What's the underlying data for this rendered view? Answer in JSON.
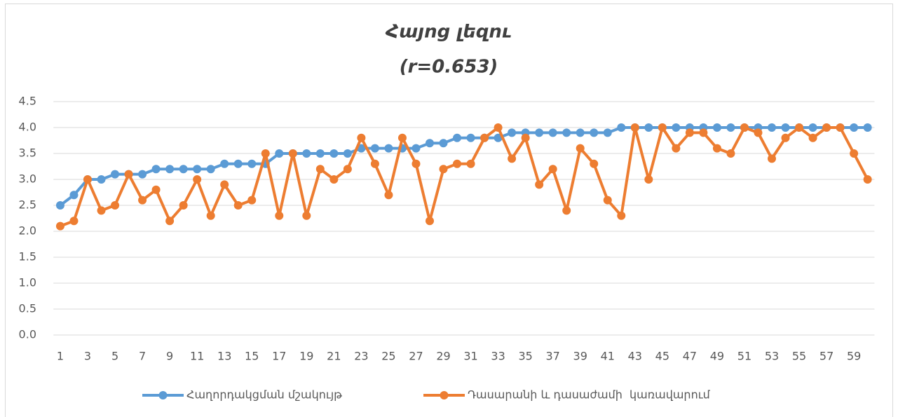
{
  "chart_data": {
    "type": "line",
    "title": "Հայոց լեզու",
    "subtitle": "(r=0.653)",
    "categories": [
      1,
      null,
      3,
      null,
      5,
      null,
      7,
      null,
      9,
      null,
      11,
      null,
      13,
      null,
      15,
      null,
      17,
      null,
      19,
      null,
      21,
      null,
      23,
      null,
      25,
      null,
      27,
      null,
      29,
      null,
      31,
      null,
      33,
      null,
      35,
      null,
      37,
      null,
      39,
      null,
      41,
      null,
      43,
      null,
      45,
      null,
      47,
      null,
      49,
      null,
      51,
      null,
      53,
      null,
      55,
      null,
      57,
      null,
      59,
      null
    ],
    "series": [
      {
        "name": "Հաղորդակցման մշակույթ",
        "color": "#5b9bd5",
        "values": [
          2.5,
          2.7,
          3.0,
          3.0,
          3.1,
          3.1,
          3.1,
          3.2,
          3.2,
          3.2,
          3.2,
          3.2,
          3.3,
          3.3,
          3.3,
          3.3,
          3.5,
          3.5,
          3.5,
          3.5,
          3.5,
          3.5,
          3.6,
          3.6,
          3.6,
          3.6,
          3.6,
          3.7,
          3.7,
          3.8,
          3.8,
          3.8,
          3.8,
          3.9,
          3.9,
          3.9,
          3.9,
          3.9,
          3.9,
          3.9,
          3.9,
          4.0,
          4.0,
          4.0,
          4.0,
          4.0,
          4.0,
          4.0,
          4.0,
          4.0,
          4.0,
          4.0,
          4.0,
          4.0,
          4.0,
          4.0,
          4.0,
          4.0,
          4.0,
          4.0
        ]
      },
      {
        "name": "Դասարանի և դասաժամի  կառավարում",
        "color": "#ed7d31",
        "values": [
          2.1,
          2.2,
          3.0,
          2.4,
          2.5,
          3.1,
          2.6,
          2.8,
          2.2,
          2.5,
          3.0,
          2.3,
          2.9,
          2.5,
          2.6,
          3.5,
          2.3,
          3.5,
          2.3,
          3.2,
          3.0,
          3.2,
          3.8,
          3.3,
          2.7,
          3.8,
          3.3,
          2.2,
          3.2,
          3.3,
          3.3,
          3.8,
          4.0,
          3.4,
          3.8,
          2.9,
          3.2,
          2.4,
          3.6,
          3.3,
          2.6,
          2.3,
          4.0,
          3.0,
          4.0,
          3.6,
          3.9,
          3.9,
          3.6,
          3.5,
          4.0,
          3.9,
          3.4,
          3.8,
          4.0,
          3.8,
          4.0,
          4.0,
          3.5,
          3.0
        ]
      }
    ],
    "ylim": [
      0,
      4.5
    ],
    "yticks": [
      {
        "value": 0,
        "label": "0.0"
      },
      {
        "value": 0.5,
        "label": "0.5"
      },
      {
        "value": 1,
        "label": "1.0"
      },
      {
        "value": 1.5,
        "label": "1.5"
      },
      {
        "value": 2,
        "label": "2.0"
      },
      {
        "value": 2.5,
        "label": "2.5"
      },
      {
        "value": 3,
        "label": "3.0"
      },
      {
        "value": 3.5,
        "label": "3.5"
      },
      {
        "value": 4,
        "label": "4.0"
      },
      {
        "value": 4.5,
        "label": "4.5"
      }
    ],
    "grid": true,
    "legend": "bottom"
  }
}
